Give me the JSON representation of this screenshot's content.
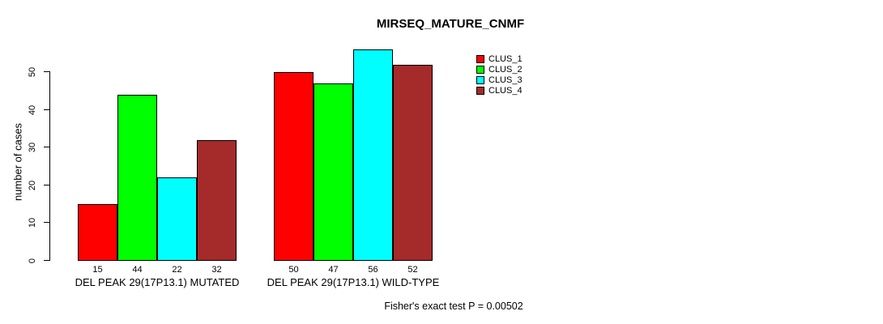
{
  "chart_data": {
    "type": "bar",
    "title": "MIRSEQ_MATURE_CNMF",
    "ylabel": "number of cases",
    "xlabel": "",
    "ylim": [
      0,
      56
    ],
    "yticks": [
      0,
      10,
      20,
      30,
      40,
      50
    ],
    "grid": false,
    "legend_position": "top-right",
    "bar_value_labels": true,
    "categories": [
      "DEL PEAK 29(17P13.1) MUTATED",
      "DEL PEAK 29(17P13.1) WILD-TYPE"
    ],
    "series": [
      {
        "name": "CLUS_1",
        "color": "#ff0000",
        "values": [
          15,
          50
        ]
      },
      {
        "name": "CLUS_2",
        "color": "#00ff00",
        "values": [
          44,
          47
        ]
      },
      {
        "name": "CLUS_3",
        "color": "#00ffff",
        "values": [
          22,
          56
        ]
      },
      {
        "name": "CLUS_4",
        "color": "#a52a2a",
        "values": [
          32,
          52
        ]
      }
    ],
    "footnote": "Fisher's exact test P = 0.00502",
    "colors": {
      "background": "#ffffff",
      "axis": "#000000",
      "text": "#000000",
      "bar_border": "#000000"
    }
  }
}
